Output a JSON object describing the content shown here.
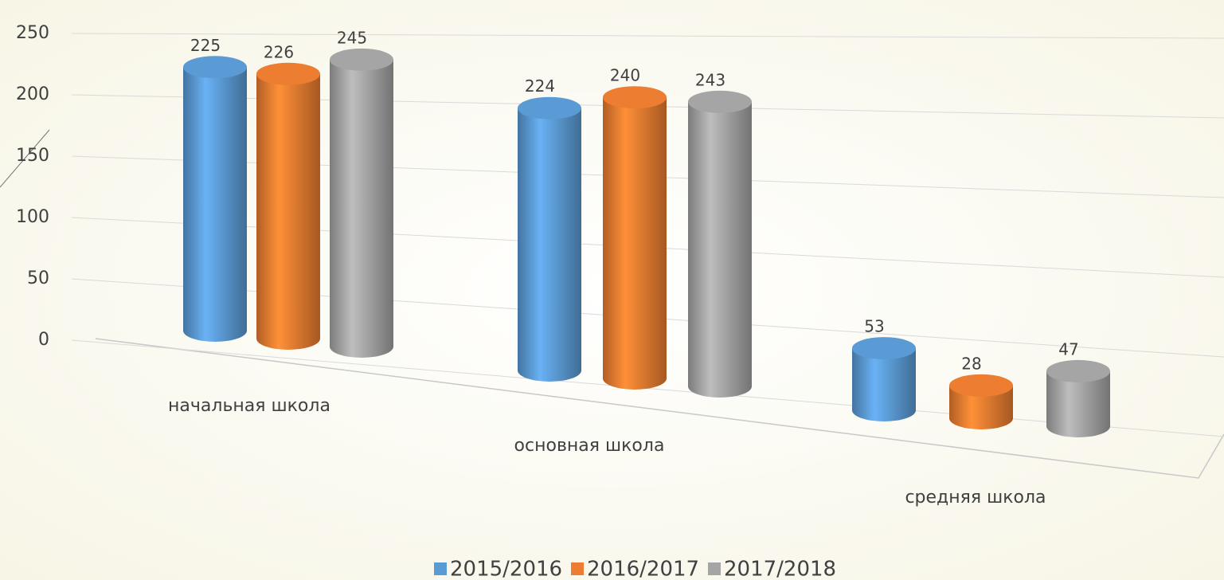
{
  "chart_data": {
    "type": "bar",
    "categories": [
      "начальная школа",
      "основная школа",
      "средняя школа"
    ],
    "series": [
      {
        "name": "2015/2016",
        "color": "#5b9bd5",
        "values": [
          225,
          224,
          53
        ]
      },
      {
        "name": "2016/2017",
        "color": "#ed7d31",
        "values": [
          226,
          240,
          28
        ]
      },
      {
        "name": "2017/2018",
        "color": "#a5a5a5",
        "values": [
          245,
          243,
          47
        ]
      }
    ],
    "ylim": [
      0,
      250
    ],
    "yticks": [
      0,
      50,
      100,
      150,
      200,
      250
    ],
    "grid": true,
    "legend": "bottom"
  }
}
